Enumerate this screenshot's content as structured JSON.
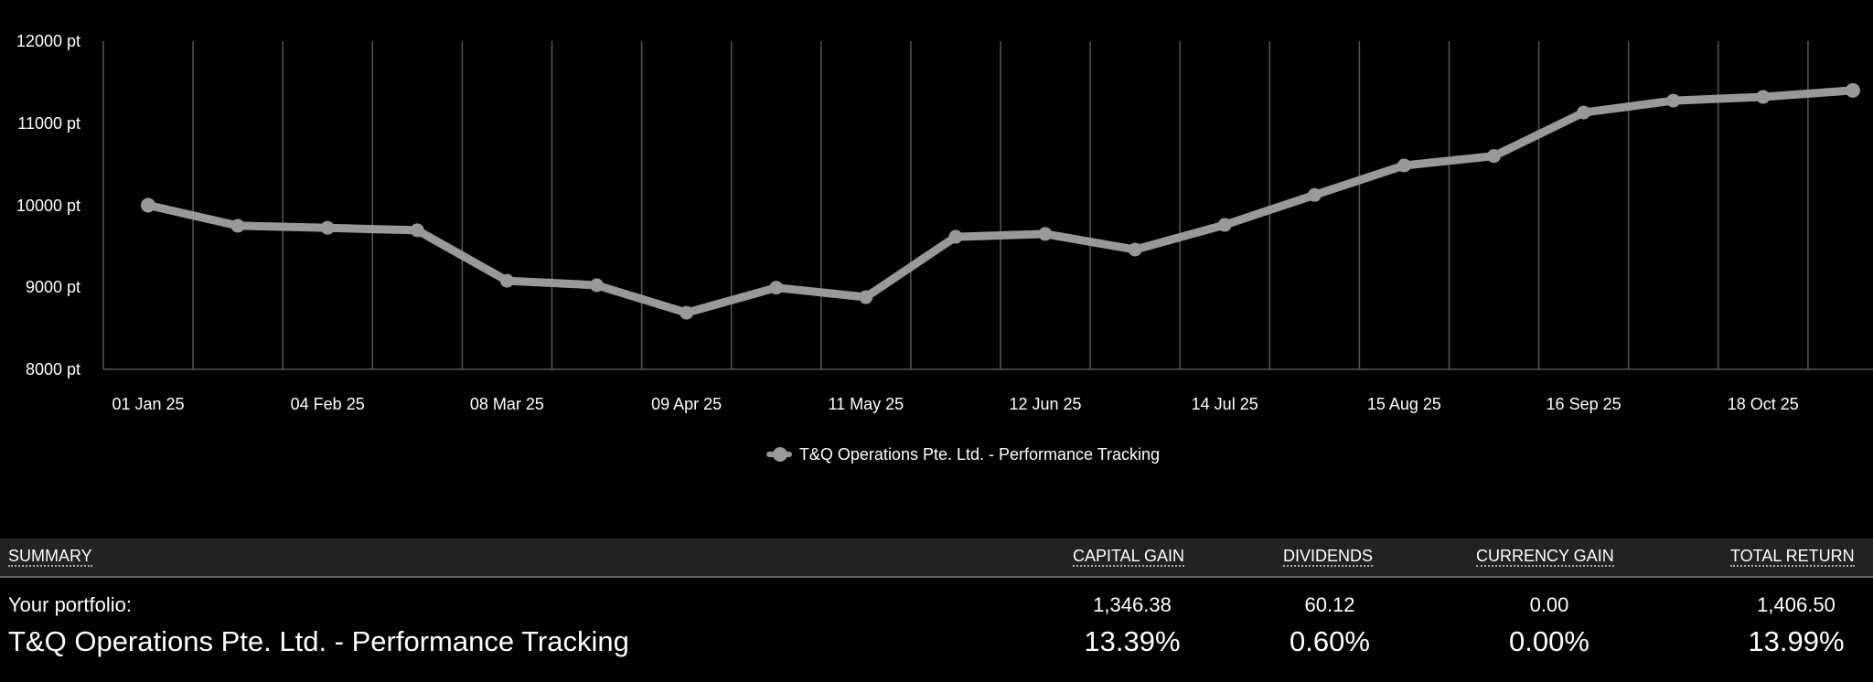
{
  "chart_data": {
    "type": "line",
    "title": "",
    "xlabel": "",
    "ylabel": "",
    "ylim": [
      8000,
      12000
    ],
    "y_ticks": [
      "12000 pt",
      "11000 pt",
      "10000 pt",
      "9000 pt",
      "8000 pt"
    ],
    "y_tick_values": [
      12000,
      11000,
      10000,
      9000,
      8000
    ],
    "x_tick_labels": [
      "01 Jan 25",
      "04 Feb 25",
      "08 Mar 25",
      "09 Apr 25",
      "11 May 25",
      "12 Jun 25",
      "14 Jul 25",
      "15 Aug 25",
      "16 Sep 25",
      "18 Oct 25"
    ],
    "x_tick_indices": [
      0,
      2,
      4,
      6,
      8,
      10,
      12,
      14,
      16,
      18
    ],
    "grid": {
      "vertical": true,
      "horizontal": false
    },
    "legend_position": "bottom",
    "series": [
      {
        "name": "T&Q Operations Pte. Ltd. - Performance Tracking",
        "color": "#999999",
        "values": [
          10000,
          9750,
          9725,
          9695,
          9080,
          9025,
          8690,
          8995,
          8880,
          9615,
          9650,
          9460,
          9760,
          10125,
          10485,
          10600,
          11130,
          11275,
          11320,
          11400
        ]
      }
    ]
  },
  "legend": {
    "label": "T&Q Operations Pte. Ltd. - Performance Tracking"
  },
  "summary": {
    "headers": {
      "summary": "SUMMARY",
      "capital_gain": "CAPITAL GAIN",
      "dividends": "DIVIDENDS",
      "currency_gain": "CURRENCY GAIN",
      "total_return": "TOTAL RETURN"
    },
    "row_values": {
      "label": "Your portfolio:",
      "capital_gain": "1,346.38",
      "dividends": "60.12",
      "currency_gain": "0.00",
      "total_return": "1,406.50"
    },
    "row_percent": {
      "label": "T&Q Operations Pte. Ltd. - Performance Tracking",
      "capital_gain": "13.39%",
      "dividends": "0.60%",
      "currency_gain": "0.00%",
      "total_return": "13.99%"
    }
  },
  "colors": {
    "background": "#000000",
    "series_line": "#999999",
    "gridline": "#555555",
    "header_band": "#222222",
    "text": "#ffffff"
  }
}
